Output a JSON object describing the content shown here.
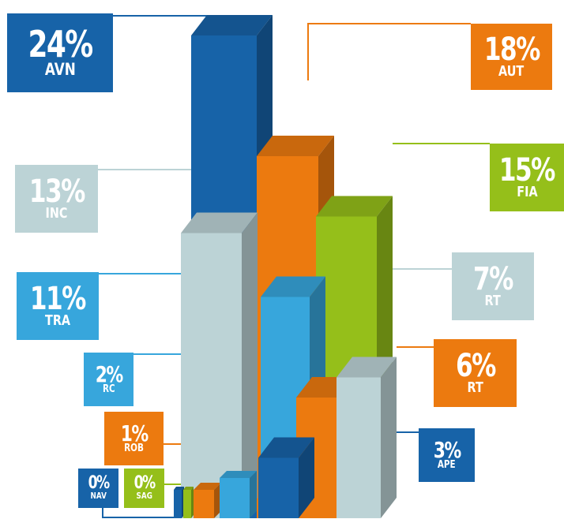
{
  "chart_data": {
    "type": "bar",
    "style": "3d",
    "value_unit": "%",
    "categories": [
      "AVN",
      "AUT",
      "FIA",
      "INC",
      "TRA",
      "RT",
      "RT",
      "RC",
      "ROB",
      "APE",
      "NAV",
      "SAG"
    ],
    "values": [
      24,
      18,
      15,
      13,
      11,
      7,
      6,
      2,
      1,
      3,
      0,
      0
    ],
    "labels": [
      "24%",
      "18%",
      "15%",
      "13%",
      "11%",
      "7%",
      "6%",
      "2%",
      "1%",
      "3%",
      "0%",
      "0%"
    ],
    "colors": [
      "#1763a8",
      "#ec7a0f",
      "#95bf1a",
      "#bcd3d6",
      "#37a6dc",
      "#bcd3d6",
      "#ec7a0f",
      "#37a6dc",
      "#ec7a0f",
      "#1763a8",
      "#1763a8",
      "#95bf1a"
    ]
  }
}
